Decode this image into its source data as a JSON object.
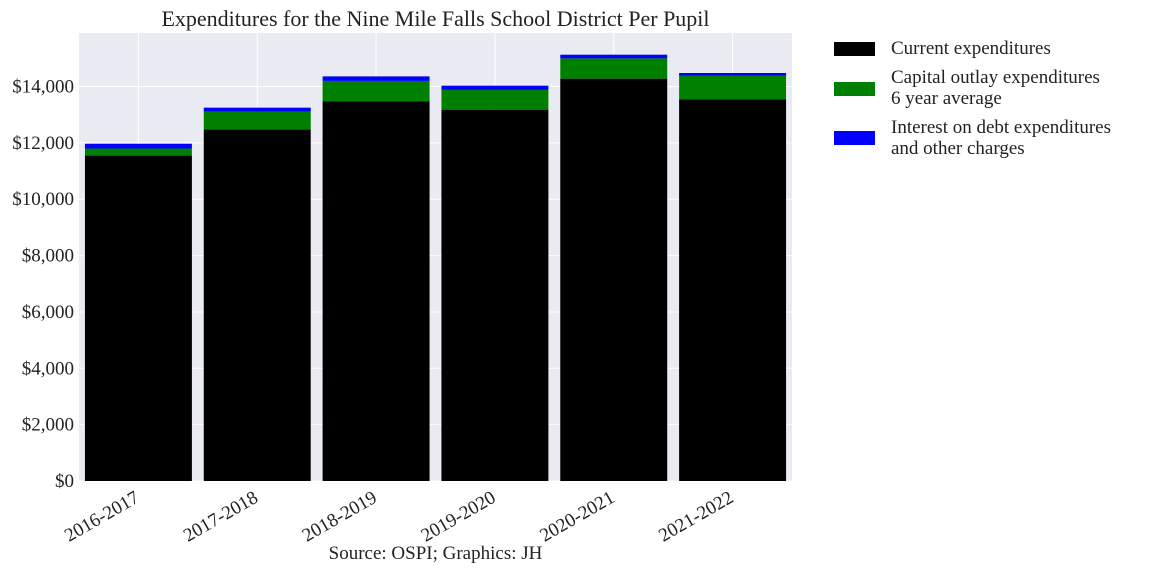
{
  "chart_data": {
    "type": "bar",
    "stacked": true,
    "title": "Expenditures for the Nine Mile Falls School District Per Pupil",
    "subtitle_source": "Source: OSPI; Graphics: JH",
    "categories": [
      "2016-2017",
      "2017-2018",
      "2018-2019",
      "2019-2020",
      "2020-2021",
      "2021-2022"
    ],
    "series": [
      {
        "name": "Current expenditures",
        "color": "#000000",
        "values": [
          11550,
          12480,
          13480,
          13180,
          14280,
          13550
        ]
      },
      {
        "name": "Capital outlay expenditures\n6 year average",
        "color": "#008000",
        "values": [
          250,
          630,
          720,
          700,
          720,
          830
        ]
      },
      {
        "name": "Interest on debt expenditures\nand other charges",
        "color": "#0000ff",
        "values": [
          170,
          140,
          160,
          150,
          130,
          100
        ]
      }
    ],
    "ylim": [
      0,
      15900
    ],
    "yticks": [
      0,
      2000,
      4000,
      6000,
      8000,
      10000,
      12000,
      14000
    ],
    "ytick_labels": [
      "$0",
      "$2,000",
      "$4,000",
      "$6,000",
      "$8,000",
      "$10,000",
      "$12,000",
      "$14,000"
    ],
    "xlabel": "",
    "ylabel": "",
    "grid": true,
    "legend_position": "outside-right-top",
    "plot_background": "#eaeaf2",
    "grid_color": "#ffffff"
  }
}
